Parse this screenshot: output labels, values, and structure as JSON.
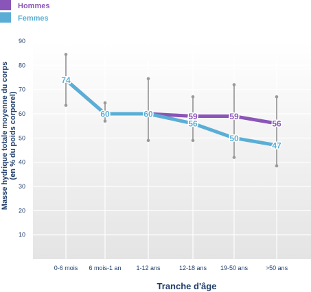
{
  "chart_data": {
    "type": "line",
    "categories": [
      "0-6 mois",
      "6 mois-1 an",
      "1-12 ans",
      "12-18 ans",
      "19-50 ans",
      ">50 ans"
    ],
    "ylim": [
      0,
      90
    ],
    "yticks": [
      10,
      20,
      30,
      40,
      50,
      60,
      70,
      80,
      90
    ],
    "xlabel": "Tranche d'âge",
    "ylabel": "Masse hydrique totale moyenne du corps",
    "ylabel2": "(en % du poids corporel)",
    "grid": true,
    "legend_position": "top-left",
    "series": [
      {
        "name": "Hommes",
        "color": "#8a55b8",
        "values": [
          74,
          60,
          60,
          59,
          59,
          56
        ],
        "labels": [
          "",
          "",
          "",
          "59",
          "59",
          "56"
        ]
      },
      {
        "name": "Femmes",
        "color": "#5aaed6",
        "values": [
          74,
          60,
          60,
          56,
          50,
          47
        ],
        "labels": [
          "74",
          "60",
          "60",
          "56",
          "50",
          "47"
        ]
      }
    ],
    "ranges": [
      {
        "category": "0-6 mois",
        "min": 63.5,
        "max": 84.5
      },
      {
        "category": "6 mois-1 an",
        "min": 57,
        "max": 64.5
      },
      {
        "category": "1-12 ans",
        "min": 49,
        "max": 74.5
      },
      {
        "category": "12-18 ans",
        "min": 49,
        "max": 67
      },
      {
        "category": "19-50 ans",
        "min": 42,
        "max": 72
      },
      {
        "category": ">50 ans",
        "min": 38.5,
        "max": 67
      }
    ]
  }
}
